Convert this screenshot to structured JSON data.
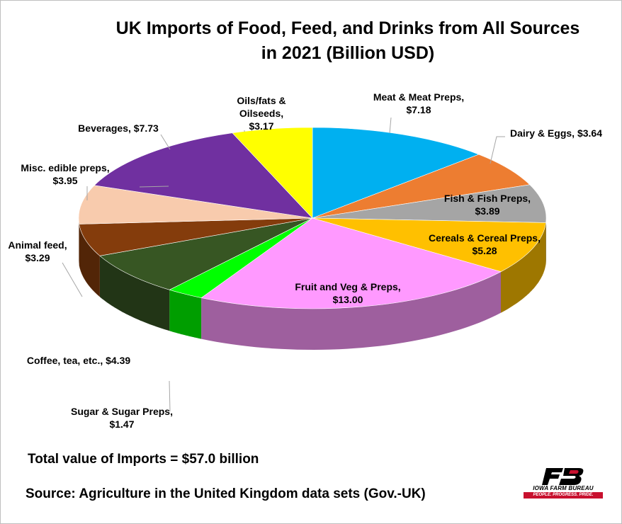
{
  "chart_data": {
    "type": "pie",
    "title_lines": [
      "UK Imports of Food, Feed, and Drinks from All Sources",
      "in 2021 (Billion USD)"
    ],
    "slices": [
      {
        "name": "Meat & Meat Preps",
        "value": 7.18,
        "value_label": "$7.18",
        "color": "#00b0f0"
      },
      {
        "name": "Dairy & Eggs",
        "value": 3.64,
        "value_label": "$3.64",
        "color": "#ed7d31"
      },
      {
        "name": "Fish & Fish Preps",
        "value": 3.89,
        "value_label": "$3.89",
        "color": "#a5a5a5"
      },
      {
        "name": "Cereals & Cereal Preps",
        "value": 5.28,
        "value_label": "$5.28",
        "color": "#ffc000"
      },
      {
        "name": "Fruit and Veg & Preps",
        "value": 13.0,
        "value_label": "$13.00",
        "color": "#ff99ff"
      },
      {
        "name": "Sugar & Sugar Preps",
        "value": 1.47,
        "value_label": "$1.47",
        "color": "#00ff00"
      },
      {
        "name": "Coffee, tea, etc.",
        "value": 4.39,
        "value_label": "$4.39",
        "color": "#375623"
      },
      {
        "name": "Animal feed",
        "value": 3.29,
        "value_label": "$3.29",
        "color": "#843c0c"
      },
      {
        "name": "Misc. edible preps",
        "value": 3.95,
        "value_label": "$3.95",
        "color": "#f8cbad"
      },
      {
        "name": "Beverages",
        "value": 7.73,
        "value_label": "$7.73",
        "color": "#7030a0"
      },
      {
        "name": "Oils/fats & Oilseeds",
        "value": 3.17,
        "value_label": "$3.17",
        "color": "#ffff00"
      }
    ],
    "labels": {
      "meat": [
        "Meat & Meat Preps,",
        "$7.18"
      ],
      "dairy": [
        "Dairy & Eggs, $3.64"
      ],
      "fish": [
        "Fish & Fish Preps,",
        "$3.89"
      ],
      "cereals": [
        "Cereals & Cereal Preps,",
        "$5.28"
      ],
      "fruit": [
        "Fruit and Veg & Preps,",
        "$13.00"
      ],
      "sugar": [
        "Sugar & Sugar Preps,",
        "$1.47"
      ],
      "coffee": [
        "Coffee, tea, etc., $4.39"
      ],
      "feed": [
        "Animal feed,",
        "$3.29"
      ],
      "misc": [
        "Misc. edible preps,",
        "$3.95"
      ],
      "beverages": [
        "Beverages, $7.73"
      ],
      "oils": [
        "Oils/fats &",
        "Oilseeds,",
        "$3.17"
      ]
    },
    "legend": "none",
    "style": "3D pie"
  },
  "notes": {
    "total": "Total value of Imports = $57.0 billion",
    "source": "Source: Agriculture in the United Kingdom data sets (Gov.-UK)"
  },
  "logo": {
    "name": "IOWA FARM BUREAU",
    "tagline": "PEOPLE. PROGRESS. PRIDE.",
    "brand_color": "#c8102e"
  }
}
